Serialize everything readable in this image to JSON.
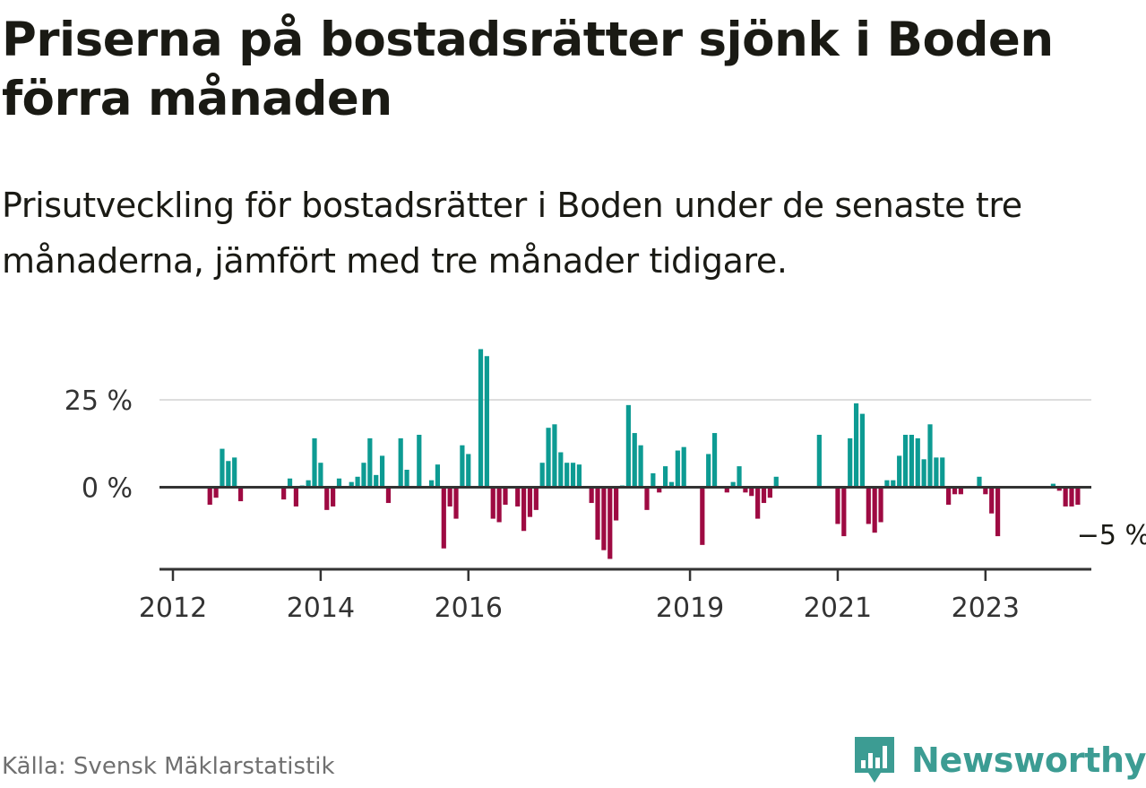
{
  "header": {
    "title": "Priserna på bostadsrätter sjönk i Boden förra månaden",
    "subtitle": "Prisutveckling för bostadsrätter i Boden under de senaste tre månaderna, jämfört med tre månader tidigare."
  },
  "footer": {
    "source": "Källa: Svensk Mäklarstatistik",
    "brand": "Newsworthy"
  },
  "colors": {
    "positive": "#0d9b93",
    "negative": "#9e0a42",
    "grid": "#dddddd",
    "axis": "#333333",
    "brand": "#3c9c93"
  },
  "chart_data": {
    "type": "bar",
    "title": "Priserna på bostadsrätter sjönk i Boden förra månaden",
    "subtitle": "Prisutveckling för bostadsrätter i Boden under de senaste tre månaderna, jämfört med tre månader tidigare.",
    "xlabel": "",
    "ylabel": "",
    "unit": "%",
    "start": "2012-01",
    "frequency": "monthly",
    "ylim": [
      -24,
      40
    ],
    "y_ticks": [
      {
        "value": 0,
        "label": "0 %"
      },
      {
        "value": 25,
        "label": "25 %"
      }
    ],
    "x_ticks": [
      {
        "index": 0,
        "label": "2012"
      },
      {
        "index": 24,
        "label": "2014"
      },
      {
        "index": 48,
        "label": "2016"
      },
      {
        "index": 84,
        "label": "2019"
      },
      {
        "index": 108,
        "label": "2021"
      },
      {
        "index": 132,
        "label": "2023"
      }
    ],
    "last_value_label": "−5 %",
    "values": [
      0,
      0,
      0,
      0,
      0,
      0,
      -5,
      -3,
      11,
      7.5,
      8.5,
      -4,
      0,
      0,
      0,
      0,
      0,
      0,
      -3.5,
      2.5,
      -5.5,
      0.5,
      2,
      14,
      7,
      -6.5,
      -5.5,
      2.5,
      0,
      1.5,
      3,
      7,
      14,
      3.5,
      9,
      -4.5,
      0,
      14,
      5,
      0,
      15,
      0,
      2,
      6.5,
      -17.5,
      -5.5,
      -9,
      12,
      9.5,
      0,
      39.5,
      37.5,
      -9,
      -10,
      -5,
      0,
      -5.5,
      -12.5,
      -8.5,
      -6.5,
      7,
      17,
      18,
      10,
      7,
      7,
      6.5,
      0,
      -4.5,
      -15,
      -18,
      -20.5,
      -9.5,
      0.5,
      23.5,
      15.5,
      12,
      -6.5,
      4,
      -1.5,
      6,
      1.5,
      10.5,
      11.5,
      0,
      0,
      -16.5,
      9.5,
      15.5,
      0,
      -1.5,
      1.5,
      6,
      -1.5,
      -2.5,
      -9,
      -4.5,
      -3,
      3,
      0,
      0,
      0,
      0,
      0,
      0,
      15,
      0,
      0,
      -10.5,
      -14,
      14,
      24,
      21,
      -10.5,
      -13,
      -10,
      2,
      2,
      9,
      15,
      15,
      14,
      8,
      18,
      8.5,
      8.5,
      -5,
      -2,
      -2,
      0,
      0,
      3,
      -2,
      -7.5,
      -14,
      0,
      0,
      0,
      0,
      0,
      0,
      0,
      0,
      1,
      -1,
      -5.5,
      -5.5,
      -5
    ]
  }
}
